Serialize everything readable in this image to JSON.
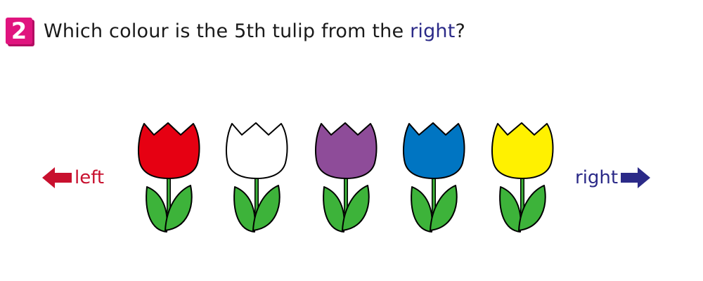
{
  "question": {
    "number": "2",
    "text_before": "Which colour is the 5th tulip from the ",
    "highlight": "right",
    "text_after": "?"
  },
  "directions": {
    "left": {
      "label": "left",
      "color": "#c8102e",
      "icon": "arrow-left-icon"
    },
    "right": {
      "label": "right",
      "color": "#2b2a88",
      "icon": "arrow-right-icon"
    }
  },
  "tulips": [
    {
      "color_name": "red",
      "color": "#e60012"
    },
    {
      "color_name": "white",
      "color": "#ffffff"
    },
    {
      "color_name": "purple",
      "color": "#8e4c99"
    },
    {
      "color_name": "blue",
      "color": "#0075c2"
    },
    {
      "color_name": "yellow",
      "color": "#fff100"
    }
  ],
  "leaf_color": "#3db33a"
}
